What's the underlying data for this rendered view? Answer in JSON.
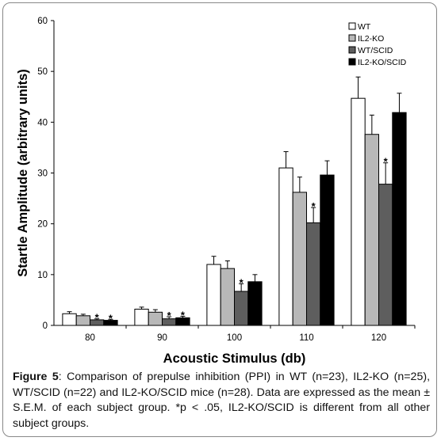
{
  "chart_data": {
    "type": "bar",
    "ylabel": "Startle Amplitude (arbitrary units)",
    "xlabel": "Acoustic Stimulus (db)",
    "categories": [
      "80",
      "90",
      "100",
      "110",
      "120"
    ],
    "ylim": [
      0,
      60
    ],
    "yticks": [
      "0",
      "10",
      "20",
      "30",
      "40",
      "50",
      "60"
    ],
    "ytick_values": [
      0,
      10,
      20,
      30,
      40,
      50,
      60
    ],
    "grid": false,
    "legend_position": "top-right",
    "series": [
      {
        "name": "WT",
        "color": "#ffffff",
        "values": [
          2.3,
          3.2,
          12.0,
          31.0,
          44.7
        ],
        "errors": [
          0.4,
          0.4,
          1.6,
          3.2,
          4.2
        ]
      },
      {
        "name": "IL2-KO",
        "color": "#b8b8b8",
        "values": [
          1.9,
          2.6,
          11.2,
          26.2,
          37.6
        ],
        "errors": [
          0.3,
          0.5,
          1.5,
          3.0,
          3.8
        ]
      },
      {
        "name": "WT/SCID",
        "color": "#5e5e5e",
        "values": [
          1.1,
          1.3,
          6.7,
          20.2,
          27.8
        ],
        "errors": [
          0.2,
          0.4,
          1.5,
          3.0,
          4.2
        ]
      },
      {
        "name": "IL2-KO/SCID",
        "color": "#000000",
        "values": [
          1.0,
          1.5,
          8.6,
          29.6,
          41.9
        ],
        "errors": [
          0.2,
          0.3,
          1.4,
          2.8,
          3.8
        ]
      }
    ],
    "significance": [
      {
        "category": "80",
        "series": "WT/SCID",
        "label": "*"
      },
      {
        "category": "80",
        "series": "IL2-KO/SCID",
        "label": "*"
      },
      {
        "category": "90",
        "series": "WT/SCID",
        "label": "*"
      },
      {
        "category": "90",
        "series": "IL2-KO/SCID",
        "label": "*"
      },
      {
        "category": "100",
        "series": "WT/SCID",
        "label": "*"
      },
      {
        "category": "110",
        "series": "WT/SCID",
        "label": "*"
      },
      {
        "category": "120",
        "series": "WT/SCID",
        "label": "*"
      }
    ]
  },
  "caption": {
    "label": "Figure 5",
    "text": ": Comparison of prepulse inhibition (PPI) in WT (n=23), IL2-KO (n=25), WT/SCID (n=22) and IL2-KO/SCID mice (n=28).  Data are expressed as the mean ± S.E.M. of each subject group. *p < .05, IL2-KO/SCID is different from all other subject groups."
  }
}
